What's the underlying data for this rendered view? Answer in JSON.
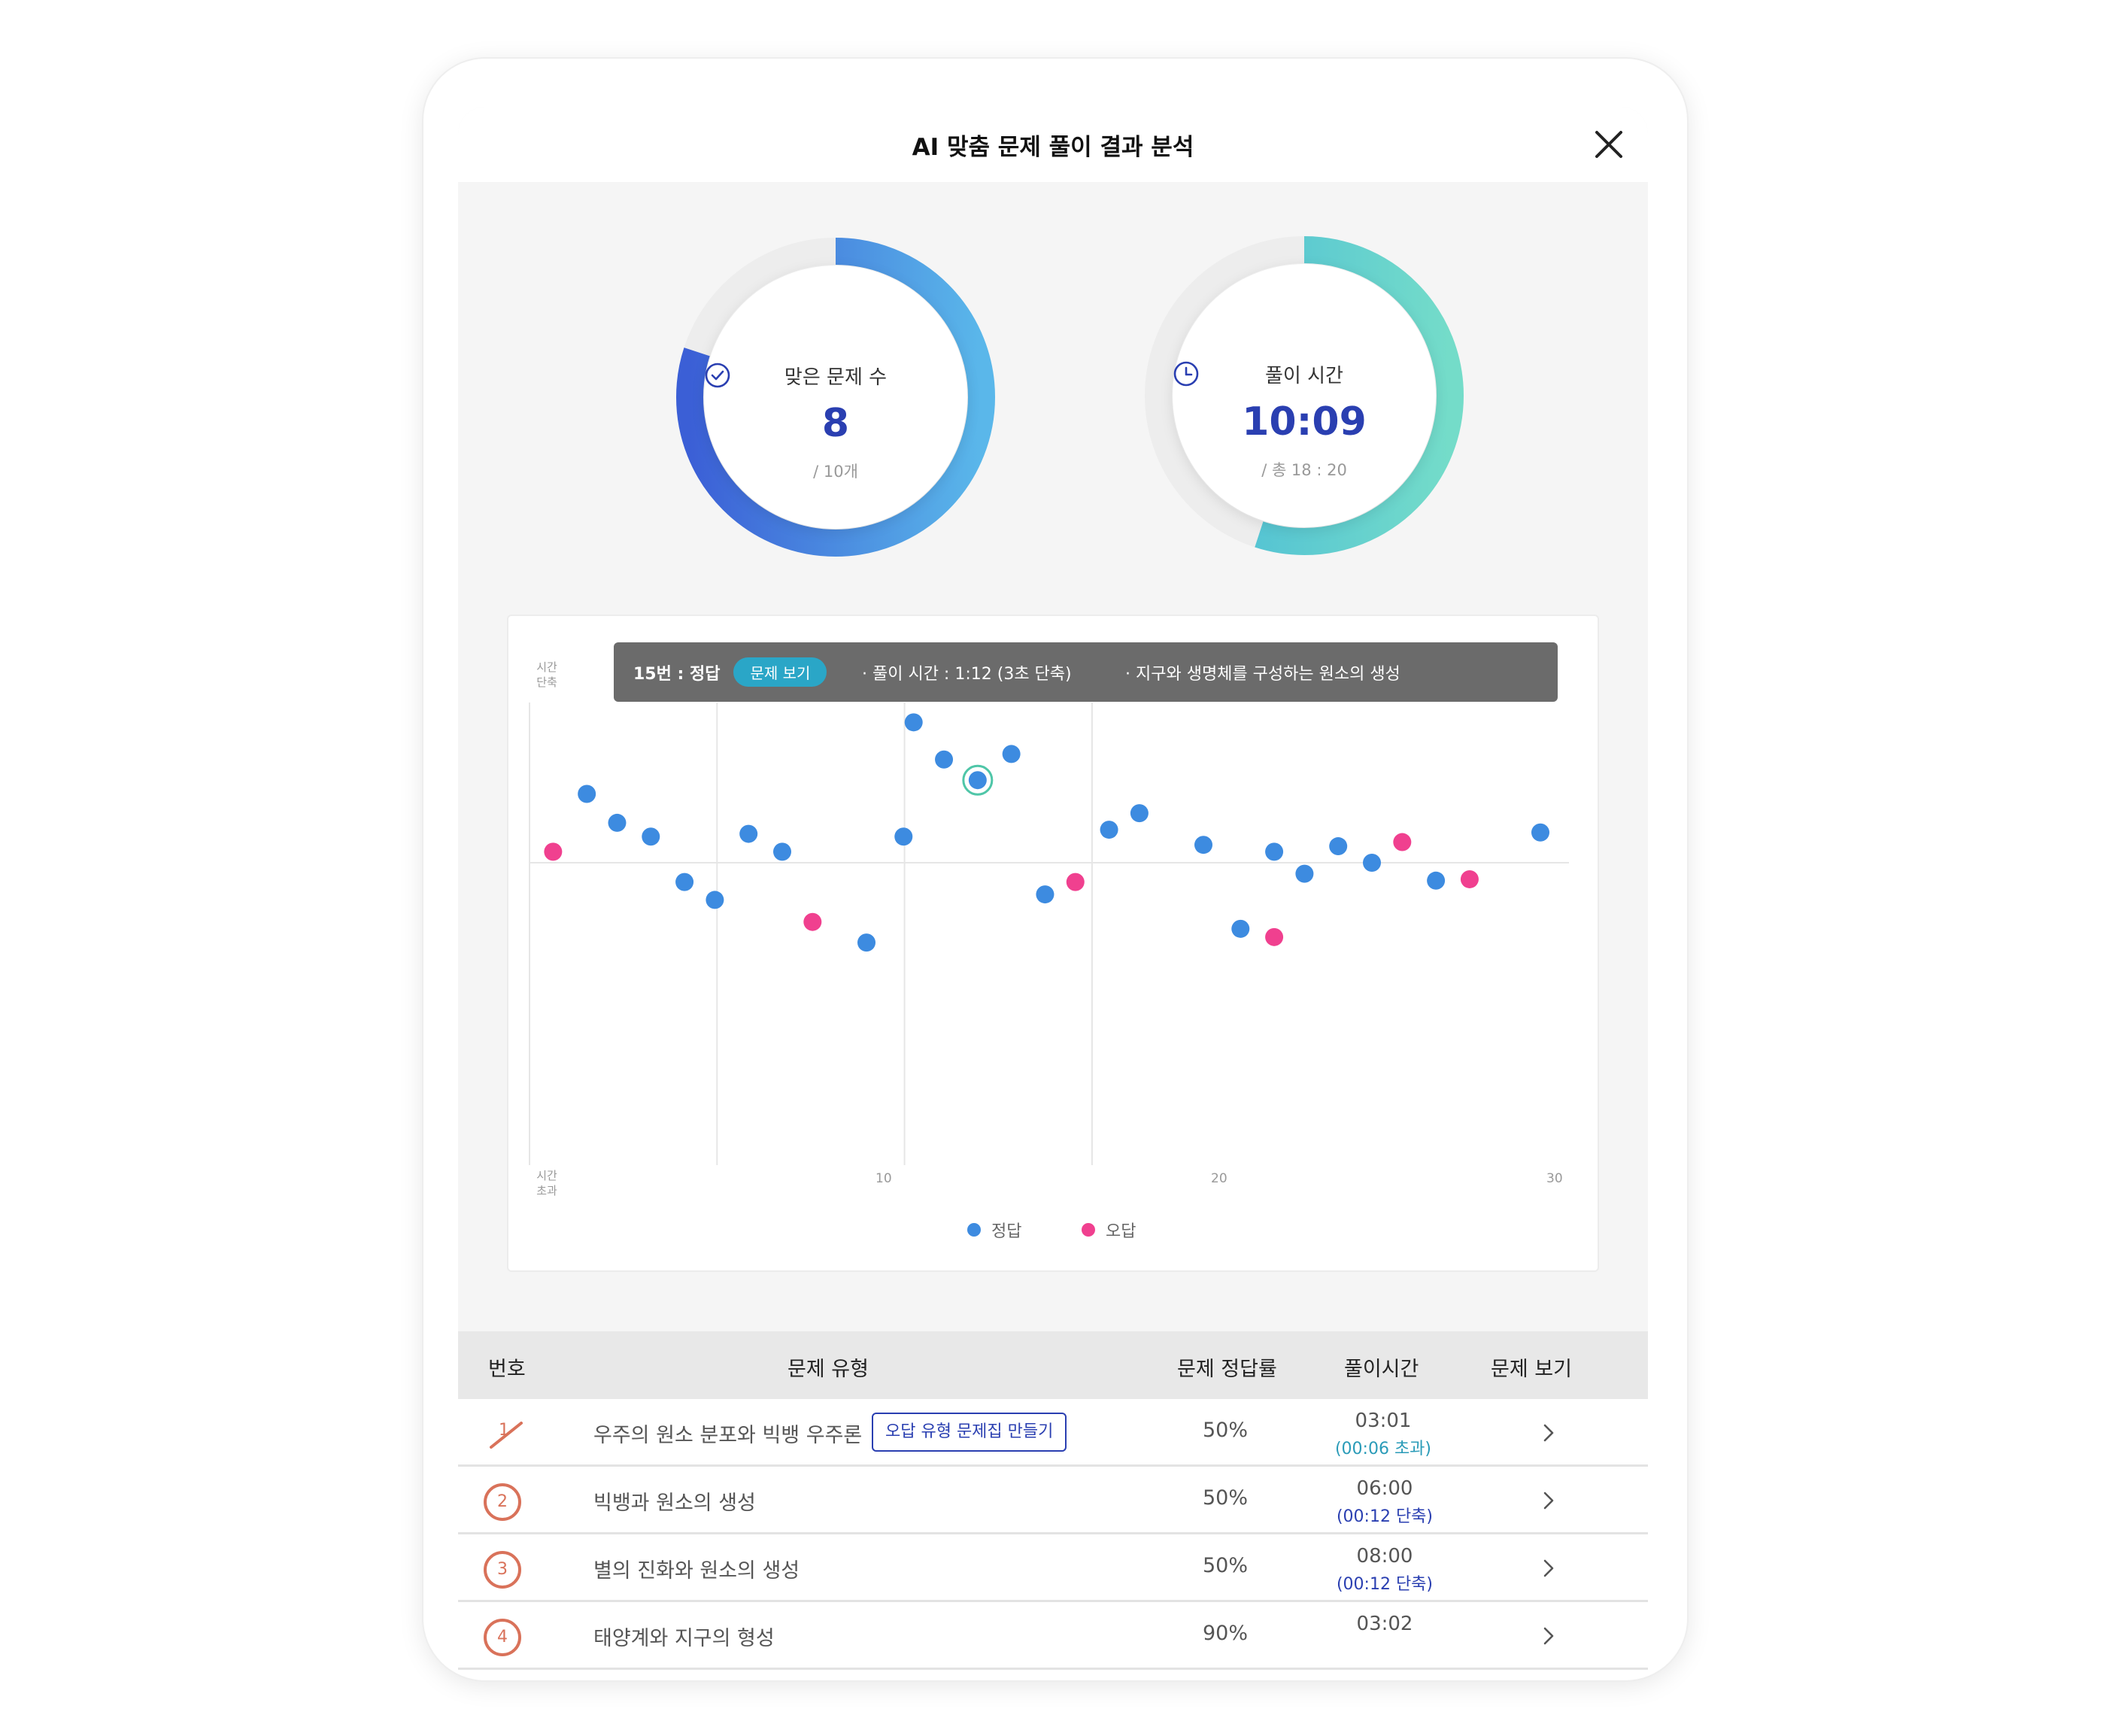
{
  "header": {
    "title": "AI 맞춤 문제 풀이 결과 분석"
  },
  "correct_summary": {
    "label": "맞은 문제 수",
    "value": "8",
    "sub": "/ 10개",
    "icon": "check-circle-icon",
    "fraction": 0.8
  },
  "time_summary": {
    "label": "풀이 시간",
    "value": "10:09",
    "sub": "/ 총 18 : 20",
    "icon": "clock-icon",
    "fraction": 0.55
  },
  "tooltip": {
    "number": "15번 : 정답",
    "button": "문제 보기",
    "time": "·  풀이 시간 : 1:12 (3초 단축)",
    "topic": "·  지구와 생명체를 구성하는 원소의 생성"
  },
  "chart_data": {
    "type": "scatter",
    "xlabel": "",
    "ylabel_top": "시간\n단축",
    "ylabel_bottom": "시간\n초과",
    "xlim": [
      0,
      30
    ],
    "ylim": [
      -70,
      70
    ],
    "xticks": [
      "10",
      "20",
      "30"
    ],
    "legend": [
      {
        "name": "정답",
        "color": "#3d8be0"
      },
      {
        "name": "오답",
        "color": "#f0408f"
      }
    ],
    "highlight_index": 13,
    "points": [
      {
        "x": 0.7,
        "y": 4,
        "correct": false
      },
      {
        "x": 1.7,
        "y": 25,
        "correct": true
      },
      {
        "x": 2.6,
        "y": 14.5,
        "correct": true
      },
      {
        "x": 3.6,
        "y": 9.5,
        "correct": true
      },
      {
        "x": 4.6,
        "y": -7,
        "correct": true
      },
      {
        "x": 5.5,
        "y": -13.5,
        "correct": true
      },
      {
        "x": 6.5,
        "y": 10.5,
        "correct": true
      },
      {
        "x": 7.5,
        "y": 4,
        "correct": true
      },
      {
        "x": 8.4,
        "y": -21.5,
        "correct": false
      },
      {
        "x": 10.0,
        "y": -29,
        "correct": true
      },
      {
        "x": 11.1,
        "y": 9.5,
        "correct": true
      },
      {
        "x": 11.4,
        "y": 51,
        "correct": true
      },
      {
        "x": 12.3,
        "y": 37.5,
        "correct": true
      },
      {
        "x": 13.3,
        "y": 30,
        "correct": true
      },
      {
        "x": 14.3,
        "y": 39.5,
        "correct": true
      },
      {
        "x": 15.3,
        "y": -11.5,
        "correct": true
      },
      {
        "x": 16.2,
        "y": -7,
        "correct": false
      },
      {
        "x": 17.2,
        "y": 12,
        "correct": true
      },
      {
        "x": 18.1,
        "y": 18,
        "correct": true
      },
      {
        "x": 20.0,
        "y": 6.5,
        "correct": true
      },
      {
        "x": 21.1,
        "y": -24,
        "correct": true
      },
      {
        "x": 22.1,
        "y": 4,
        "correct": true
      },
      {
        "x": 22.1,
        "y": -27,
        "correct": false
      },
      {
        "x": 23.0,
        "y": -4,
        "correct": true
      },
      {
        "x": 24.0,
        "y": 6,
        "correct": true
      },
      {
        "x": 25.0,
        "y": 0,
        "correct": true
      },
      {
        "x": 25.9,
        "y": 7.5,
        "correct": false
      },
      {
        "x": 26.9,
        "y": -6.5,
        "correct": true
      },
      {
        "x": 27.9,
        "y": -6,
        "correct": false
      },
      {
        "x": 30.0,
        "y": 11,
        "correct": true
      }
    ]
  },
  "table": {
    "headers": {
      "number": "번호",
      "type": "문제 유형",
      "rate": "문제 정답률",
      "time": "풀이시간",
      "view": "문제 보기"
    },
    "make_button": "오답 유형 문제집 만들기",
    "rows": [
      {
        "number": "1",
        "type": "우주의 원소 분포와 빅뱅 우주론",
        "rate": "50%",
        "time": "03:01",
        "delta": "(00:06 초과)",
        "delta_color": "#2a9bb8"
      },
      {
        "number": "2",
        "type": "빅뱅과 원소의 생성",
        "rate": "50%",
        "time": "06:00",
        "delta": "(00:12 단축)",
        "delta_color": "#2a3fb1"
      },
      {
        "number": "3",
        "type": "별의 진화와 원소의 생성",
        "rate": "50%",
        "time": "08:00",
        "delta": "(00:12 단축)",
        "delta_color": "#2a3fb1"
      },
      {
        "number": "4",
        "type": "태양계와 지구의 형성",
        "rate": "90%",
        "time": "03:02",
        "delta": "",
        "delta_color": "#2a3fb1"
      }
    ]
  }
}
